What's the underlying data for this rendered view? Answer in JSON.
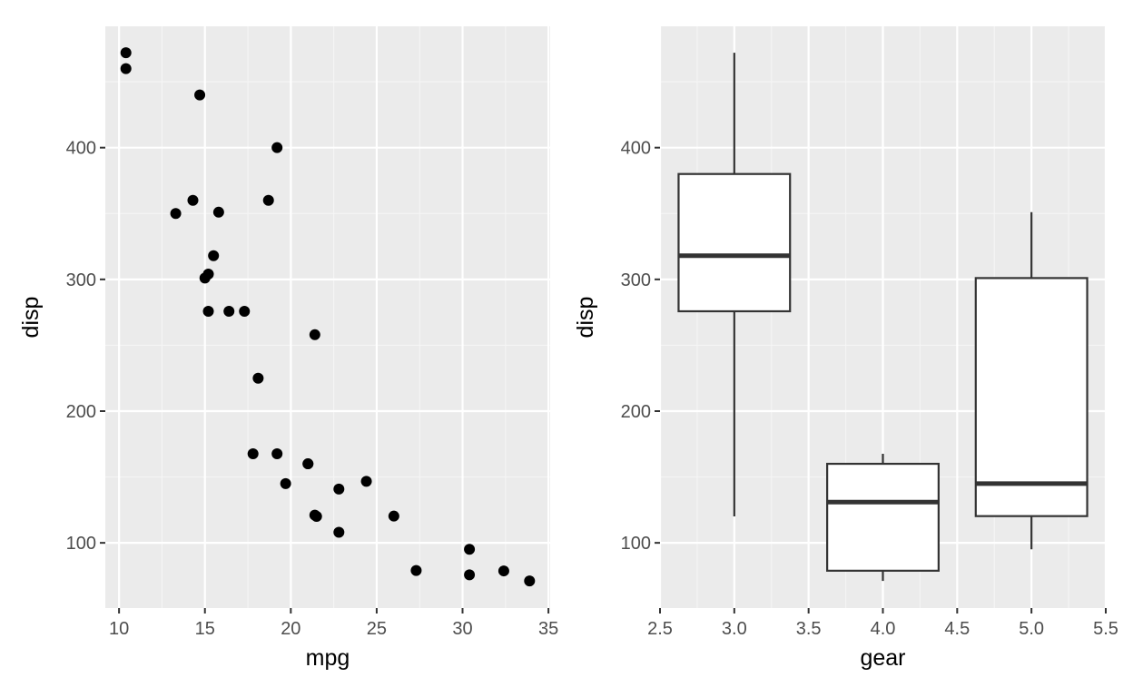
{
  "colors": {
    "panel_background": "#ebebeb",
    "grid_major": "#ffffff",
    "grid_minor": "#f5f5f5",
    "tick_mark": "#333333",
    "tick_label": "#4d4d4d",
    "point": "#000000",
    "box_fill": "#ffffff",
    "box_stroke": "#333333"
  },
  "chart_data": [
    {
      "type": "scatter",
      "title": "",
      "xlabel": "mpg",
      "ylabel": "disp",
      "xlim": [
        9.2,
        35.1
      ],
      "ylim": [
        50.5,
        492.1
      ],
      "xticks": [
        10,
        15,
        20,
        25,
        30,
        35
      ],
      "xtick_labels": [
        "10",
        "15",
        "20",
        "25",
        "30",
        "35"
      ],
      "yticks": [
        100,
        200,
        300,
        400
      ],
      "ytick_labels": [
        "100",
        "200",
        "300",
        "400"
      ],
      "grid": true,
      "points": [
        [
          21.0,
          160
        ],
        [
          21.0,
          160
        ],
        [
          22.8,
          108
        ],
        [
          21.4,
          258
        ],
        [
          18.7,
          360
        ],
        [
          18.1,
          225
        ],
        [
          14.3,
          360
        ],
        [
          24.4,
          146.7
        ],
        [
          22.8,
          140.8
        ],
        [
          19.2,
          167.6
        ],
        [
          17.8,
          167.6
        ],
        [
          16.4,
          275.8
        ],
        [
          17.3,
          275.8
        ],
        [
          15.2,
          275.8
        ],
        [
          10.4,
          472
        ],
        [
          10.4,
          460
        ],
        [
          14.7,
          440
        ],
        [
          32.4,
          78.7
        ],
        [
          30.4,
          75.7
        ],
        [
          33.9,
          71.1
        ],
        [
          21.5,
          120.1
        ],
        [
          15.5,
          318
        ],
        [
          15.2,
          304
        ],
        [
          13.3,
          350
        ],
        [
          19.2,
          400
        ],
        [
          27.3,
          79
        ],
        [
          26.0,
          120.3
        ],
        [
          30.4,
          95.1
        ],
        [
          15.8,
          351
        ],
        [
          19.7,
          145
        ],
        [
          15.0,
          301
        ],
        [
          21.4,
          121
        ]
      ]
    },
    {
      "type": "box",
      "title": "",
      "xlabel": "gear",
      "ylabel": "disp",
      "xlim": [
        2.5,
        5.5
      ],
      "ylim": [
        50.5,
        492.1
      ],
      "xticks": [
        2.5,
        3.0,
        3.5,
        4.0,
        4.5,
        5.0,
        5.5
      ],
      "xtick_labels": [
        "2.5",
        "3.0",
        "3.5",
        "4.0",
        "4.5",
        "5.0",
        "5.5"
      ],
      "yticks": [
        100,
        200,
        300,
        400
      ],
      "ytick_labels": [
        "100",
        "200",
        "300",
        "400"
      ],
      "grid": true,
      "box_width": 0.75,
      "boxes": [
        {
          "x": 3,
          "whisker_low": 120.1,
          "q1": 275.8,
          "median": 318,
          "q3": 380,
          "whisker_high": 472
        },
        {
          "x": 4,
          "whisker_low": 71.1,
          "q1": 78.85,
          "median": 130.9,
          "q3": 160,
          "whisker_high": 167.6
        },
        {
          "x": 5,
          "whisker_low": 95.1,
          "q1": 120.3,
          "median": 145,
          "q3": 301,
          "whisker_high": 351
        }
      ]
    }
  ]
}
